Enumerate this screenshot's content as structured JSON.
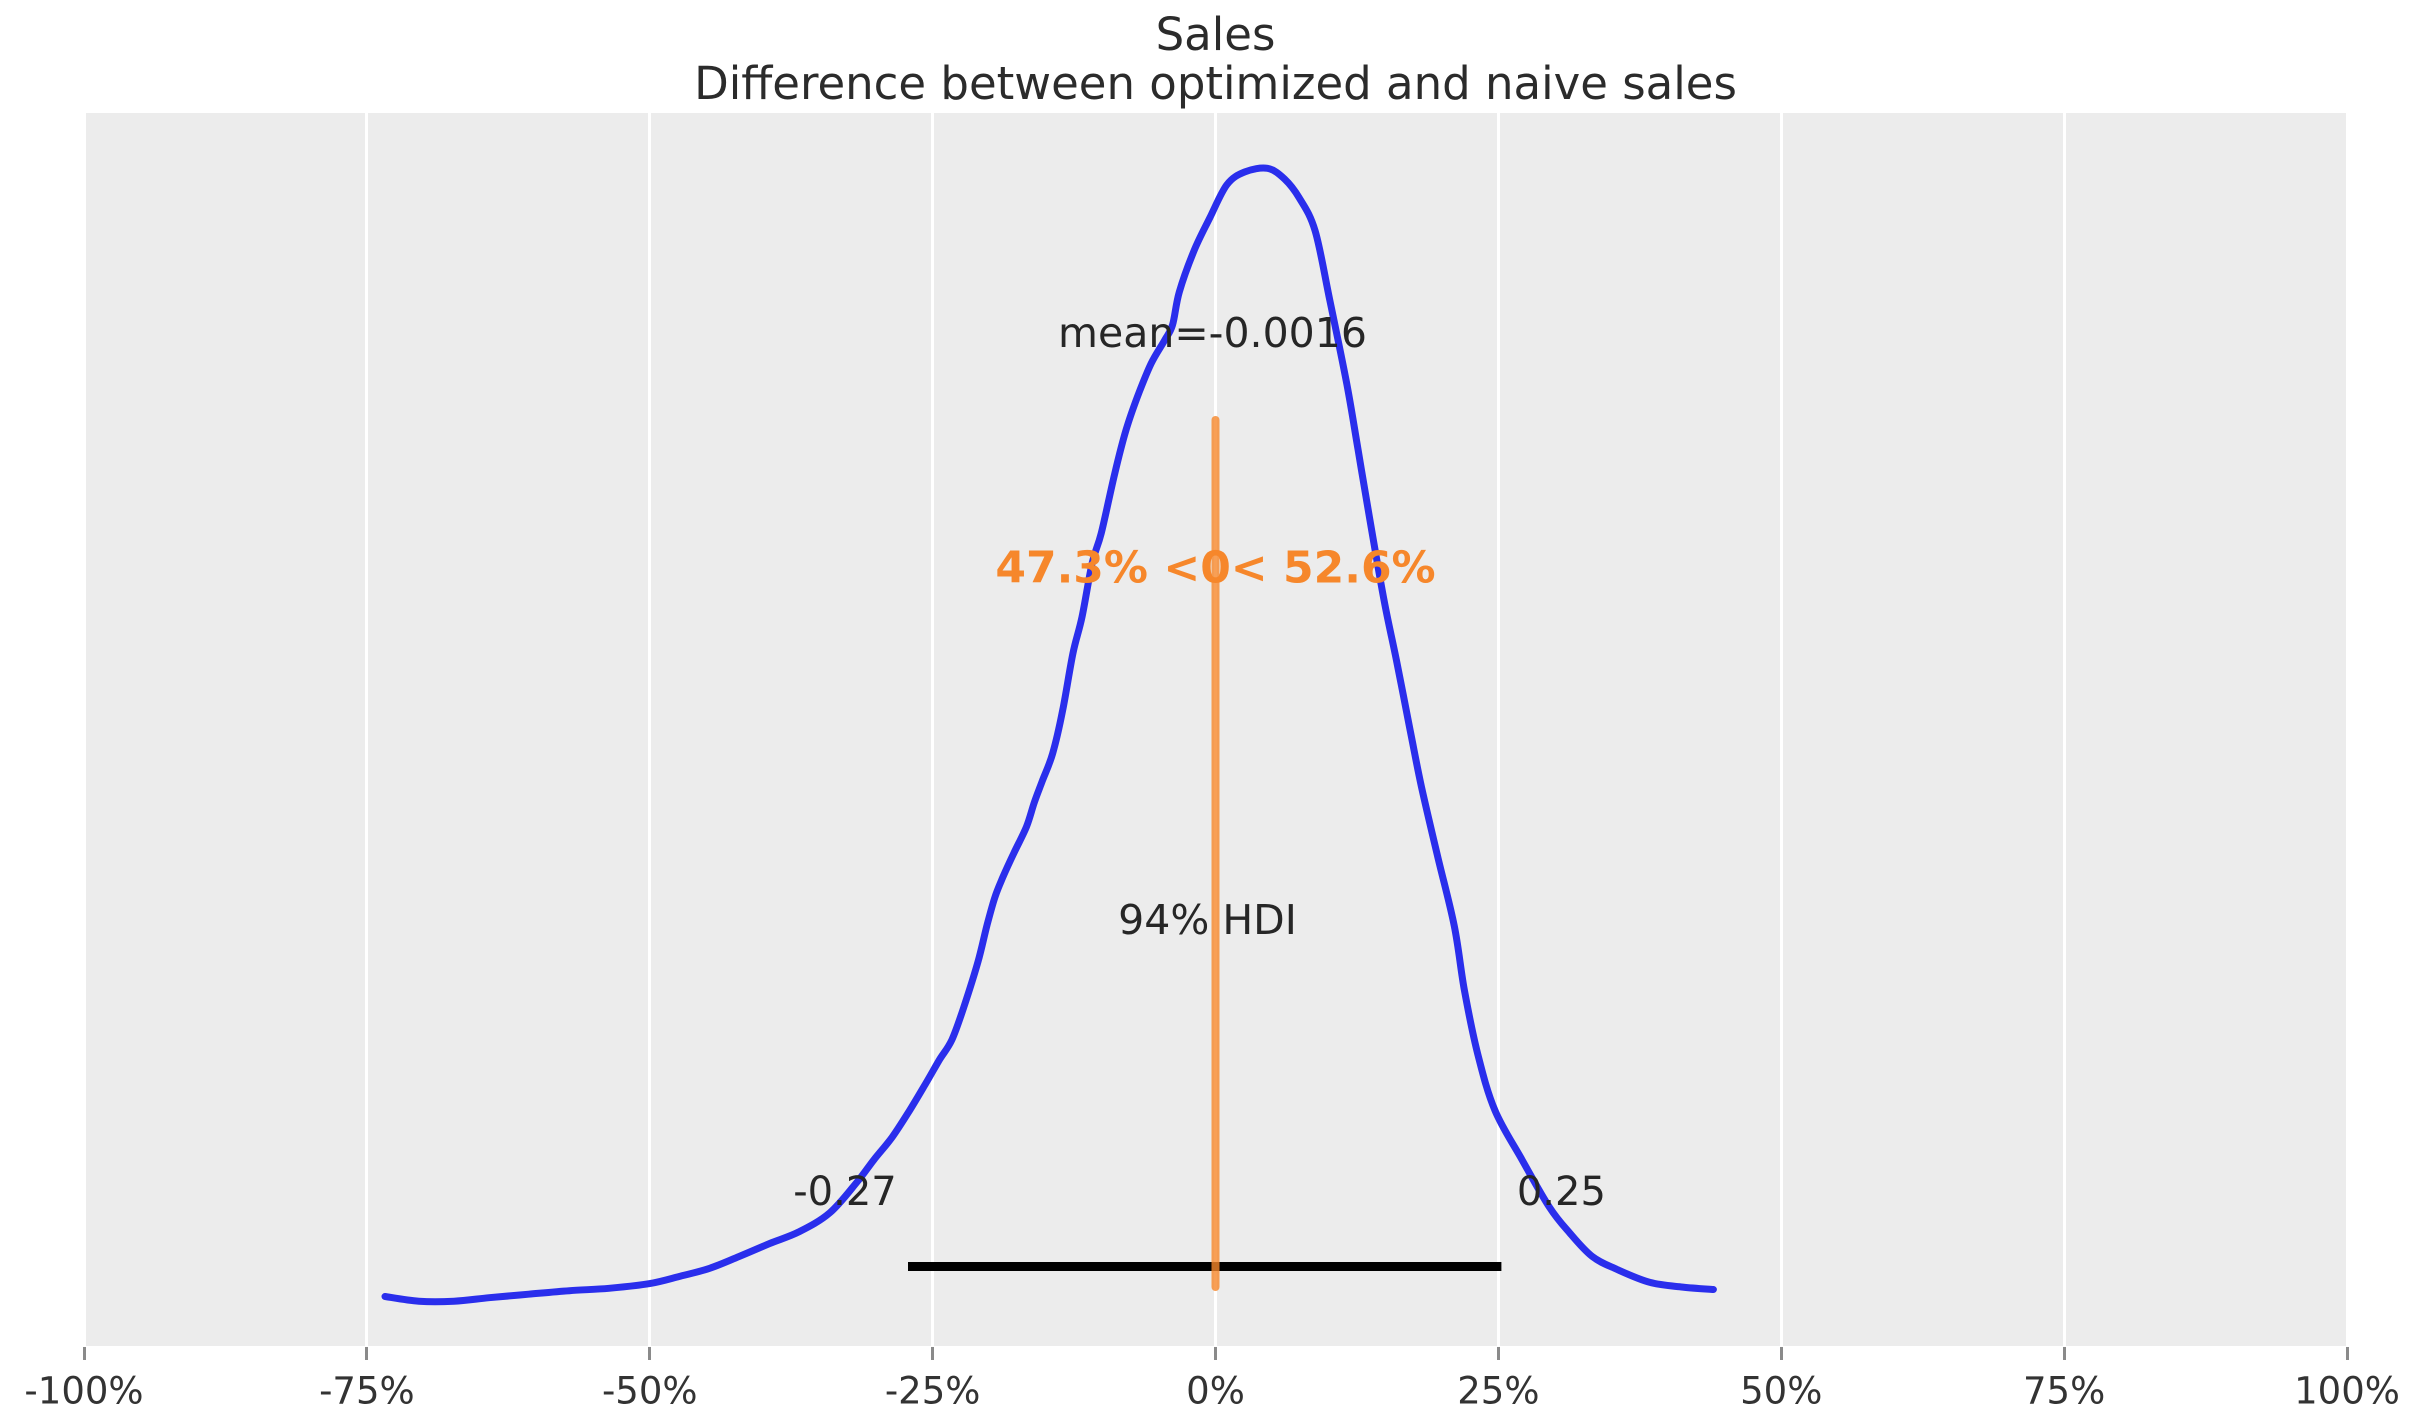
{
  "title": {
    "line1": "Sales",
    "line2": "Difference between optimized and naive sales"
  },
  "annotations": {
    "mean_label": "mean=-0.0016",
    "ref_prob_label": "47.3% <0< 52.6%",
    "hdi_title": "94% HDI",
    "hdi_lower_label": "-0.27",
    "hdi_upper_label": "0.25"
  },
  "colors": {
    "plot_bg": "#ececec",
    "grid": "#ffffff",
    "curve": "#2a2eec",
    "ref_line": "#f6872b",
    "ref_text": "#f6872b",
    "hdi_bar": "#000000",
    "title_text": "#2b2b2b",
    "annotation_text": "#262626",
    "tick_text": "#333333",
    "tick_mark": "#8a8a8a"
  },
  "chart_data": {
    "type": "line",
    "title": "Sales",
    "subtitle": "Difference between optimized and naive sales",
    "xlabel": "",
    "ylabel": "",
    "xlim": [
      -1,
      1
    ],
    "ylim_density_max": 1.047,
    "grid": "on",
    "x_tick_values": [
      -1,
      -0.75,
      -0.5,
      -0.25,
      0,
      0.25,
      0.5,
      0.75,
      1
    ],
    "x_tick_labels": [
      "-100%",
      "-75%",
      "-50%",
      "-25%",
      "0%",
      "25%",
      "50%",
      "75%",
      "100%"
    ],
    "mean": -0.0016,
    "ref_val": 0,
    "prob_below_ref": 47.3,
    "prob_above_ref": 52.6,
    "hdi_interval": "94%",
    "hdi": [
      -0.27,
      0.25
    ],
    "kde_points": [
      [
        -0.734,
        0.042
      ],
      [
        -0.704,
        0.038
      ],
      [
        -0.673,
        0.038
      ],
      [
        -0.642,
        0.041
      ],
      [
        -0.607,
        0.044
      ],
      [
        -0.571,
        0.047
      ],
      [
        -0.536,
        0.049
      ],
      [
        -0.5,
        0.053
      ],
      [
        -0.474,
        0.059
      ],
      [
        -0.447,
        0.066
      ],
      [
        -0.421,
        0.076
      ],
      [
        -0.394,
        0.087
      ],
      [
        -0.368,
        0.097
      ],
      [
        -0.341,
        0.113
      ],
      [
        -0.317,
        0.139
      ],
      [
        -0.302,
        0.158
      ],
      [
        -0.286,
        0.177
      ],
      [
        -0.271,
        0.199
      ],
      [
        -0.256,
        0.223
      ],
      [
        -0.244,
        0.243
      ],
      [
        -0.233,
        0.26
      ],
      [
        -0.222,
        0.289
      ],
      [
        -0.21,
        0.326
      ],
      [
        -0.202,
        0.357
      ],
      [
        -0.195,
        0.381
      ],
      [
        -0.188,
        0.398
      ],
      [
        -0.178,
        0.419
      ],
      [
        -0.167,
        0.441
      ],
      [
        -0.16,
        0.462
      ],
      [
        -0.153,
        0.48
      ],
      [
        -0.144,
        0.503
      ],
      [
        -0.135,
        0.54
      ],
      [
        -0.126,
        0.588
      ],
      [
        -0.118,
        0.619
      ],
      [
        -0.109,
        0.665
      ],
      [
        -0.101,
        0.69
      ],
      [
        -0.089,
        0.741
      ],
      [
        -0.079,
        0.778
      ],
      [
        -0.069,
        0.806
      ],
      [
        -0.057,
        0.834
      ],
      [
        -0.045,
        0.854
      ],
      [
        -0.038,
        0.867
      ],
      [
        -0.032,
        0.895
      ],
      [
        -0.019,
        0.93
      ],
      [
        -0.005,
        0.958
      ],
      [
        0.01,
        0.986
      ],
      [
        0.026,
        0.997
      ],
      [
        0.046,
        1.0
      ],
      [
        0.061,
        0.991
      ],
      [
        0.074,
        0.975
      ],
      [
        0.088,
        0.947
      ],
      [
        0.101,
        0.888
      ],
      [
        0.116,
        0.817
      ],
      [
        0.126,
        0.761
      ],
      [
        0.136,
        0.704
      ],
      [
        0.149,
        0.633
      ],
      [
        0.16,
        0.582
      ],
      [
        0.172,
        0.523
      ],
      [
        0.182,
        0.475
      ],
      [
        0.196,
        0.417
      ],
      [
        0.211,
        0.357
      ],
      [
        0.22,
        0.302
      ],
      [
        0.232,
        0.247
      ],
      [
        0.247,
        0.2
      ],
      [
        0.271,
        0.158
      ],
      [
        0.295,
        0.118
      ],
      [
        0.313,
        0.096
      ],
      [
        0.333,
        0.076
      ],
      [
        0.355,
        0.065
      ],
      [
        0.384,
        0.054
      ],
      [
        0.413,
        0.05
      ],
      [
        0.44,
        0.048
      ]
    ]
  }
}
